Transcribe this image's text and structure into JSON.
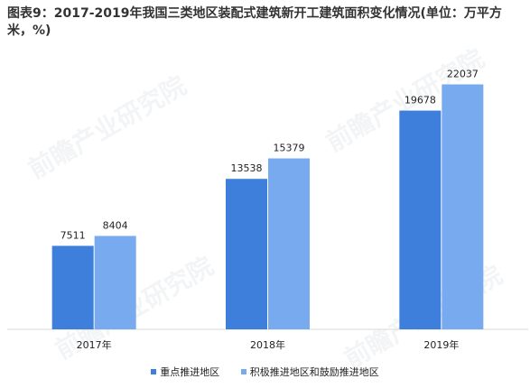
{
  "title": "图表9：2017-2019年我国三类地区装配式建筑新开工建筑面积变化情况(单位：万平方米，%)",
  "watermark": "前瞻产业研究院",
  "chart_data": {
    "type": "bar",
    "categories": [
      "2017年",
      "2018年",
      "2019年"
    ],
    "series": [
      {
        "name": "重点推进地区",
        "values": [
          7511,
          13538,
          19678
        ],
        "color": "#3d7fdb"
      },
      {
        "name": "积极推进地区和鼓励推进地区",
        "values": [
          8404,
          15379,
          22037
        ],
        "color": "#78aaf0"
      }
    ],
    "ylim": [
      0,
      25000
    ],
    "grid": false,
    "legend_position": "bottom"
  }
}
